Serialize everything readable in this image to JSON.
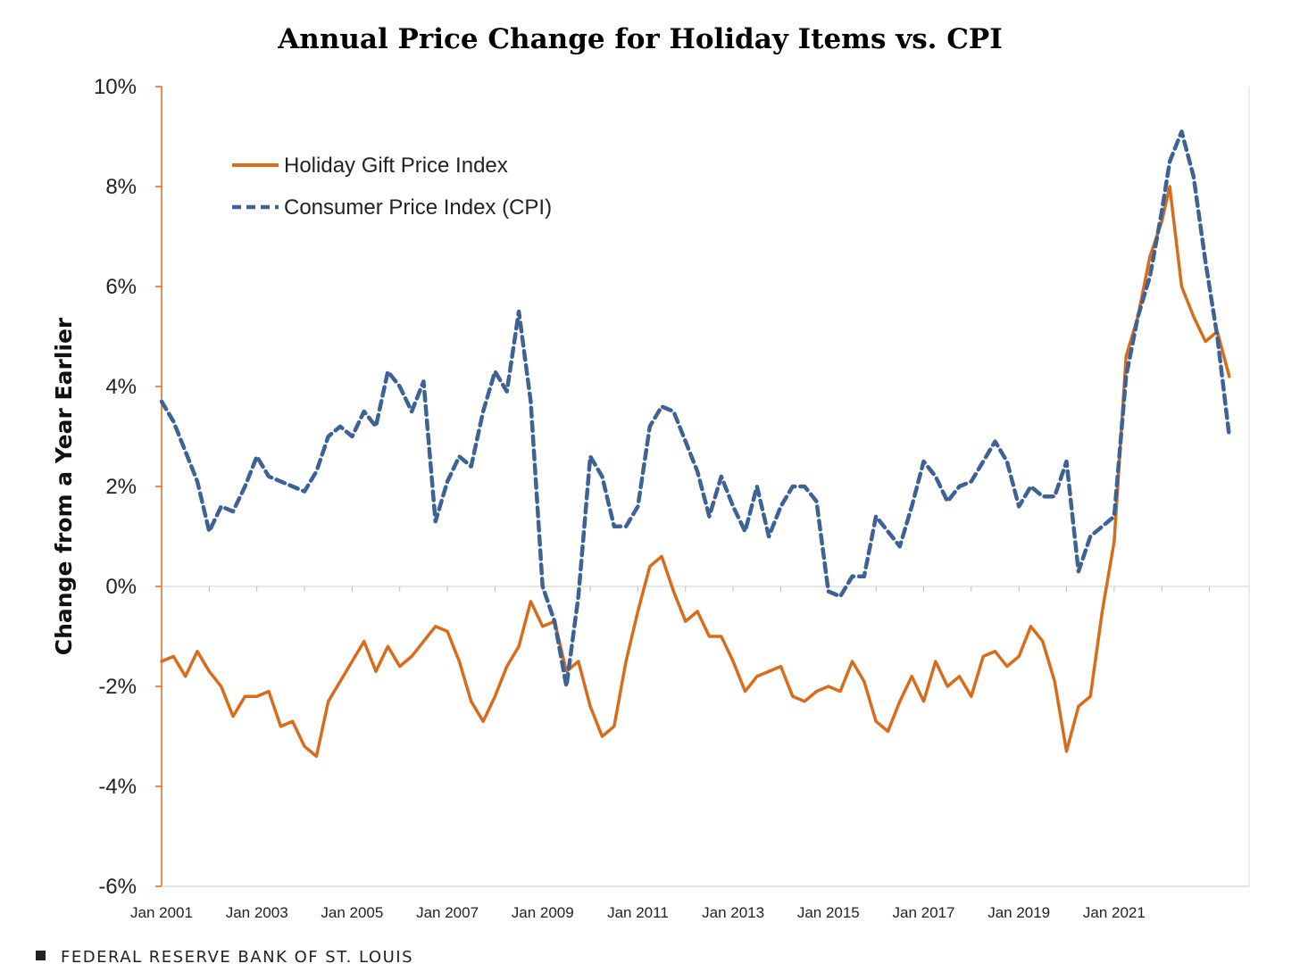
{
  "chart_data": {
    "type": "line",
    "title": "Annual Price Change for Holiday Items vs. CPI",
    "ylabel": "Change from a Year Earlier",
    "xlabel": "",
    "xlim": [
      "2001-01",
      "2023-11"
    ],
    "ylim": [
      -6,
      10
    ],
    "yticks": [
      10,
      8,
      6,
      4,
      2,
      0,
      -2,
      -4,
      -6
    ],
    "ytick_labels": [
      "10%",
      "8%",
      "6%",
      "4%",
      "2%",
      "0%",
      "-2%",
      "-4%",
      "-6%"
    ],
    "xticks": [
      "2001-01",
      "2003-01",
      "2005-01",
      "2007-01",
      "2009-01",
      "2011-01",
      "2013-01",
      "2015-01",
      "2017-01",
      "2019-01",
      "2021-01"
    ],
    "xtick_labels": [
      "Jan 2001",
      "Jan 2003",
      "Jan 2005",
      "Jan 2007",
      "Jan 2009",
      "Jan 2011",
      "Jan 2013",
      "Jan 2015",
      "Jan 2017",
      "Jan 2019",
      "Jan 2021"
    ],
    "grid": "horizontal zero line only",
    "legend": "top-left",
    "series": [
      {
        "name": "Holiday Gift Price Index",
        "color": "#d86c1a",
        "style": "solid",
        "points": [
          [
            "2001-01",
            -1.5
          ],
          [
            "2001-04",
            -1.4
          ],
          [
            "2001-07",
            -1.8
          ],
          [
            "2001-10",
            -1.3
          ],
          [
            "2002-01",
            -1.7
          ],
          [
            "2002-04",
            -2.0
          ],
          [
            "2002-07",
            -2.6
          ],
          [
            "2002-10",
            -2.2
          ],
          [
            "2003-01",
            -2.2
          ],
          [
            "2003-04",
            -2.1
          ],
          [
            "2003-07",
            -2.8
          ],
          [
            "2003-10",
            -2.7
          ],
          [
            "2004-01",
            -3.2
          ],
          [
            "2004-04",
            -3.4
          ],
          [
            "2004-07",
            -2.3
          ],
          [
            "2004-10",
            -1.9
          ],
          [
            "2005-01",
            -1.5
          ],
          [
            "2005-04",
            -1.1
          ],
          [
            "2005-07",
            -1.7
          ],
          [
            "2005-10",
            -1.2
          ],
          [
            "2006-01",
            -1.6
          ],
          [
            "2006-04",
            -1.4
          ],
          [
            "2006-07",
            -1.1
          ],
          [
            "2006-10",
            -0.8
          ],
          [
            "2007-01",
            -0.9
          ],
          [
            "2007-04",
            -1.5
          ],
          [
            "2007-07",
            -2.3
          ],
          [
            "2007-10",
            -2.7
          ],
          [
            "2008-01",
            -2.2
          ],
          [
            "2008-04",
            -1.6
          ],
          [
            "2008-07",
            -1.2
          ],
          [
            "2008-10",
            -0.3
          ],
          [
            "2009-01",
            -0.8
          ],
          [
            "2009-04",
            -0.7
          ],
          [
            "2009-07",
            -1.7
          ],
          [
            "2009-10",
            -1.5
          ],
          [
            "2010-01",
            -2.4
          ],
          [
            "2010-04",
            -3.0
          ],
          [
            "2010-07",
            -2.8
          ],
          [
            "2010-10",
            -1.5
          ],
          [
            "2011-01",
            -0.5
          ],
          [
            "2011-04",
            0.4
          ],
          [
            "2011-07",
            0.6
          ],
          [
            "2011-10",
            -0.1
          ],
          [
            "2012-01",
            -0.7
          ],
          [
            "2012-04",
            -0.5
          ],
          [
            "2012-07",
            -1.0
          ],
          [
            "2012-10",
            -1.0
          ],
          [
            "2013-01",
            -1.5
          ],
          [
            "2013-04",
            -2.1
          ],
          [
            "2013-07",
            -1.8
          ],
          [
            "2013-10",
            -1.7
          ],
          [
            "2014-01",
            -1.6
          ],
          [
            "2014-04",
            -2.2
          ],
          [
            "2014-07",
            -2.3
          ],
          [
            "2014-10",
            -2.1
          ],
          [
            "2015-01",
            -2.0
          ],
          [
            "2015-04",
            -2.1
          ],
          [
            "2015-07",
            -1.5
          ],
          [
            "2015-10",
            -1.9
          ],
          [
            "2016-01",
            -2.7
          ],
          [
            "2016-04",
            -2.9
          ],
          [
            "2016-07",
            -2.3
          ],
          [
            "2016-10",
            -1.8
          ],
          [
            "2017-01",
            -2.3
          ],
          [
            "2017-04",
            -1.5
          ],
          [
            "2017-07",
            -2.0
          ],
          [
            "2017-10",
            -1.8
          ],
          [
            "2018-01",
            -2.2
          ],
          [
            "2018-04",
            -1.4
          ],
          [
            "2018-07",
            -1.3
          ],
          [
            "2018-10",
            -1.6
          ],
          [
            "2019-01",
            -1.4
          ],
          [
            "2019-04",
            -0.8
          ],
          [
            "2019-07",
            -1.1
          ],
          [
            "2019-10",
            -1.9
          ],
          [
            "2020-01",
            -3.3
          ],
          [
            "2020-04",
            -2.4
          ],
          [
            "2020-07",
            -2.2
          ],
          [
            "2020-10",
            -0.5
          ],
          [
            "2021-01",
            0.9
          ],
          [
            "2021-04",
            4.6
          ],
          [
            "2021-07",
            5.4
          ],
          [
            "2021-10",
            6.6
          ],
          [
            "2022-01",
            7.3
          ],
          [
            "2022-03",
            8.0
          ],
          [
            "2022-06",
            6.0
          ],
          [
            "2022-09",
            5.4
          ],
          [
            "2022-12",
            4.9
          ],
          [
            "2023-03",
            5.1
          ],
          [
            "2023-06",
            4.2
          ]
        ]
      },
      {
        "name": "Consumer Price Index (CPI)",
        "color": "#3d6296",
        "style": "dashed",
        "points": [
          [
            "2001-01",
            3.7
          ],
          [
            "2001-04",
            3.3
          ],
          [
            "2001-07",
            2.7
          ],
          [
            "2001-10",
            2.1
          ],
          [
            "2002-01",
            1.1
          ],
          [
            "2002-04",
            1.6
          ],
          [
            "2002-07",
            1.5
          ],
          [
            "2002-10",
            2.0
          ],
          [
            "2003-01",
            2.6
          ],
          [
            "2003-04",
            2.2
          ],
          [
            "2003-07",
            2.1
          ],
          [
            "2003-10",
            2.0
          ],
          [
            "2004-01",
            1.9
          ],
          [
            "2004-04",
            2.3
          ],
          [
            "2004-07",
            3.0
          ],
          [
            "2004-10",
            3.2
          ],
          [
            "2005-01",
            3.0
          ],
          [
            "2005-04",
            3.5
          ],
          [
            "2005-07",
            3.2
          ],
          [
            "2005-10",
            4.3
          ],
          [
            "2006-01",
            4.0
          ],
          [
            "2006-04",
            3.5
          ],
          [
            "2006-07",
            4.1
          ],
          [
            "2006-10",
            1.3
          ],
          [
            "2007-01",
            2.1
          ],
          [
            "2007-04",
            2.6
          ],
          [
            "2007-07",
            2.4
          ],
          [
            "2007-10",
            3.5
          ],
          [
            "2008-01",
            4.3
          ],
          [
            "2008-04",
            3.9
          ],
          [
            "2008-07",
            5.5
          ],
          [
            "2008-10",
            3.7
          ],
          [
            "2009-01",
            0.0
          ],
          [
            "2009-04",
            -0.7
          ],
          [
            "2009-07",
            -2.0
          ],
          [
            "2009-10",
            -0.2
          ],
          [
            "2010-01",
            2.6
          ],
          [
            "2010-04",
            2.2
          ],
          [
            "2010-07",
            1.2
          ],
          [
            "2010-10",
            1.2
          ],
          [
            "2011-01",
            1.6
          ],
          [
            "2011-04",
            3.2
          ],
          [
            "2011-07",
            3.6
          ],
          [
            "2011-10",
            3.5
          ],
          [
            "2012-01",
            2.9
          ],
          [
            "2012-04",
            2.3
          ],
          [
            "2012-07",
            1.4
          ],
          [
            "2012-10",
            2.2
          ],
          [
            "2013-01",
            1.6
          ],
          [
            "2013-04",
            1.1
          ],
          [
            "2013-07",
            2.0
          ],
          [
            "2013-10",
            1.0
          ],
          [
            "2014-01",
            1.6
          ],
          [
            "2014-04",
            2.0
          ],
          [
            "2014-07",
            2.0
          ],
          [
            "2014-10",
            1.7
          ],
          [
            "2015-01",
            -0.1
          ],
          [
            "2015-04",
            -0.2
          ],
          [
            "2015-07",
            0.2
          ],
          [
            "2015-10",
            0.2
          ],
          [
            "2016-01",
            1.4
          ],
          [
            "2016-04",
            1.1
          ],
          [
            "2016-07",
            0.8
          ],
          [
            "2016-10",
            1.6
          ],
          [
            "2017-01",
            2.5
          ],
          [
            "2017-04",
            2.2
          ],
          [
            "2017-07",
            1.7
          ],
          [
            "2017-10",
            2.0
          ],
          [
            "2018-01",
            2.1
          ],
          [
            "2018-04",
            2.5
          ],
          [
            "2018-07",
            2.9
          ],
          [
            "2018-10",
            2.5
          ],
          [
            "2019-01",
            1.6
          ],
          [
            "2019-04",
            2.0
          ],
          [
            "2019-07",
            1.8
          ],
          [
            "2019-10",
            1.8
          ],
          [
            "2020-01",
            2.5
          ],
          [
            "2020-04",
            0.3
          ],
          [
            "2020-07",
            1.0
          ],
          [
            "2020-10",
            1.2
          ],
          [
            "2021-01",
            1.4
          ],
          [
            "2021-04",
            4.2
          ],
          [
            "2021-07",
            5.4
          ],
          [
            "2021-10",
            6.2
          ],
          [
            "2022-01",
            7.5
          ],
          [
            "2022-03",
            8.5
          ],
          [
            "2022-06",
            9.1
          ],
          [
            "2022-09",
            8.2
          ],
          [
            "2022-12",
            6.5
          ],
          [
            "2023-03",
            5.0
          ],
          [
            "2023-06",
            3.0
          ]
        ]
      }
    ]
  },
  "footer": {
    "source": "FEDERAL RESERVE BANK OF ST. LOUIS"
  }
}
